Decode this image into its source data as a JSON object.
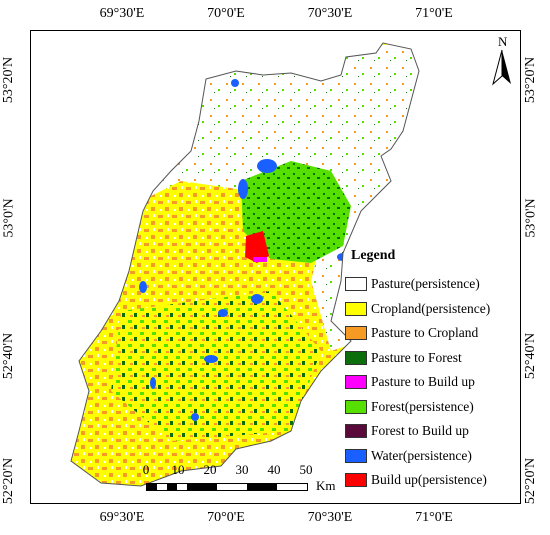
{
  "coordinates": {
    "top": [
      "69°30'E",
      "70°0'E",
      "70°30'E",
      "71°0'E"
    ],
    "bottom": [
      "69°30'E",
      "70°0'E",
      "70°30'E",
      "71°0'E"
    ],
    "left": [
      "53°20'N",
      "53°0'N",
      "52°40'N",
      "52°20'N"
    ],
    "right": [
      "53°20'N",
      "53°0'N",
      "52°40'N",
      "52°20'N"
    ]
  },
  "north_arrow": {
    "label": "N"
  },
  "legend": {
    "title": "Legend",
    "items": [
      {
        "label": "Pasture(persistence)",
        "color": "#ffffff"
      },
      {
        "label": "Cropland(persistence)",
        "color": "#ffff00"
      },
      {
        "label": "Pasture to Cropland",
        "color": "#f59a23"
      },
      {
        "label": "Pasture to Forest",
        "color": "#0b6e0b"
      },
      {
        "label": "Pasture to Build up",
        "color": "#ff00ff"
      },
      {
        "label": "Forest(persistence)",
        "color": "#55e000"
      },
      {
        "label": "Forest to Build up",
        "color": "#5a0a3a"
      },
      {
        "label": "Water(persistence)",
        "color": "#1a5fff"
      },
      {
        "label": "Build up(persistence)",
        "color": "#ff0000"
      }
    ]
  },
  "scale_bar": {
    "ticks": [
      "0",
      "10",
      "20",
      "30",
      "40",
      "50"
    ],
    "unit": "Km"
  }
}
